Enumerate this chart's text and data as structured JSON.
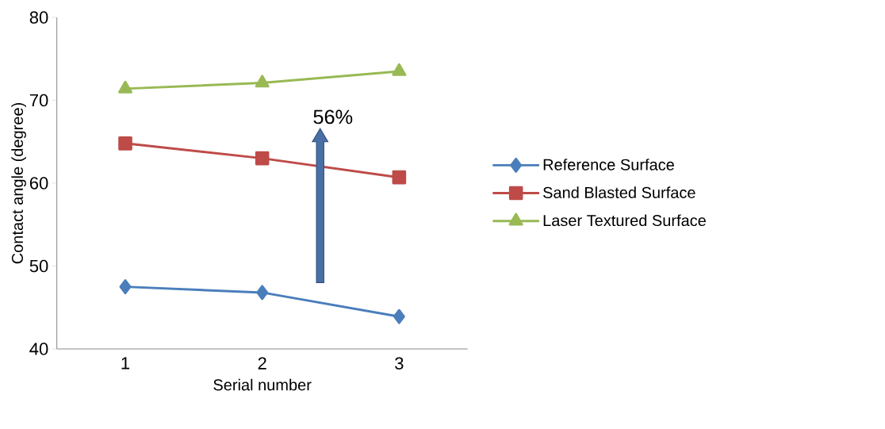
{
  "chart_data": {
    "type": "line",
    "xlabel": "Serial number",
    "ylabel": "Contact angle (degree)",
    "categories": [
      "1",
      "2",
      "3"
    ],
    "series": [
      {
        "name": "Reference Surface",
        "color": "#4a7ebb",
        "marker": "diamond",
        "values": [
          47.5,
          46.8,
          43.9
        ]
      },
      {
        "name": "Sand Blasted Surface",
        "color": "#be4b48",
        "marker": "square",
        "values": [
          64.8,
          63.0,
          60.7
        ]
      },
      {
        "name": "Laser Textured Surface",
        "color": "#98b954",
        "marker": "triangle",
        "values": [
          71.4,
          72.1,
          73.5
        ]
      }
    ],
    "ylim": [
      40,
      80
    ],
    "yticks": [
      40,
      50,
      60,
      70,
      80
    ],
    "grid": false,
    "legend": "right",
    "annotations": [
      "56%"
    ]
  }
}
